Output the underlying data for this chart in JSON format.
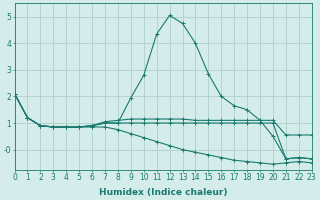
{
  "xlabel": "Humidex (Indice chaleur)",
  "ylabel": "",
  "background_color": "#d4ecea",
  "grid_color": "#afd0cc",
  "line_color": "#1a7a6e",
  "x_values": [
    0,
    1,
    2,
    3,
    4,
    5,
    6,
    7,
    8,
    9,
    10,
    11,
    12,
    13,
    14,
    15,
    16,
    17,
    18,
    19,
    20,
    21,
    22,
    23
  ],
  "series": [
    [
      2.1,
      1.2,
      0.9,
      0.85,
      0.85,
      0.85,
      0.9,
      1.05,
      1.1,
      1.15,
      1.15,
      1.15,
      1.15,
      1.15,
      1.1,
      1.1,
      1.1,
      1.1,
      1.1,
      1.1,
      1.1,
      0.55,
      0.55,
      0.55
    ],
    [
      2.1,
      1.2,
      0.9,
      0.85,
      0.85,
      0.85,
      0.9,
      1.0,
      1.0,
      1.95,
      2.8,
      4.35,
      5.05,
      4.75,
      4.0,
      2.85,
      2.0,
      1.65,
      1.5,
      1.1,
      0.5,
      -0.35,
      -0.3,
      -0.35
    ],
    [
      2.1,
      1.2,
      0.9,
      0.85,
      0.85,
      0.85,
      0.9,
      1.0,
      1.0,
      1.0,
      1.0,
      1.0,
      1.0,
      1.0,
      1.0,
      1.0,
      1.0,
      1.0,
      1.0,
      1.0,
      1.0,
      -0.35,
      -0.3,
      -0.35
    ],
    [
      2.1,
      1.2,
      0.9,
      0.85,
      0.85,
      0.85,
      0.85,
      0.85,
      0.75,
      0.6,
      0.45,
      0.3,
      0.15,
      0.0,
      -0.1,
      -0.2,
      -0.3,
      -0.4,
      -0.45,
      -0.5,
      -0.55,
      -0.5,
      -0.45,
      -0.5
    ]
  ],
  "xlim": [
    0,
    23
  ],
  "ylim": [
    -0.75,
    5.5
  ],
  "yticks": [
    0,
    1,
    2,
    3,
    4,
    5
  ],
  "ytick_labels": [
    "-0",
    "1",
    "2",
    "3",
    "4",
    "5"
  ],
  "xticks": [
    0,
    1,
    2,
    3,
    4,
    5,
    6,
    7,
    8,
    9,
    10,
    11,
    12,
    13,
    14,
    15,
    16,
    17,
    18,
    19,
    20,
    21,
    22,
    23
  ],
  "title_fontsize": 7,
  "label_fontsize": 6.5,
  "tick_fontsize": 5.5
}
